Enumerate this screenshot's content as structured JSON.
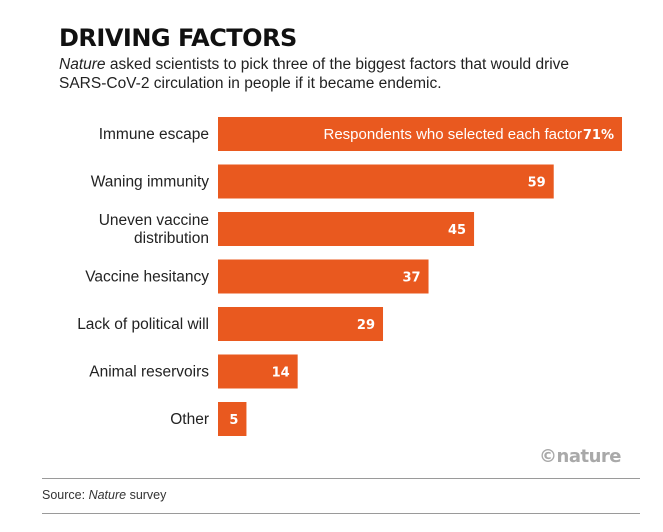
{
  "header": {
    "title": "DRIVING FACTORS",
    "subtitle_em": "Nature",
    "subtitle_rest": " asked scientists to pick three of the biggest factors that would drive SARS-CoV-2 circulation in people if it became endemic."
  },
  "colors": {
    "bar": "#e9591f",
    "text": "#222222",
    "rule": "#9a9a9a",
    "logo": "#a9a9a9"
  },
  "chart_data": {
    "type": "bar",
    "orientation": "horizontal",
    "title": "DRIVING FACTORS",
    "legend": "Respondents who selected each factor",
    "unit_suffix": "%",
    "categories": [
      [
        "Immune escape"
      ],
      [
        "Waning immunity"
      ],
      [
        "Uneven vaccine",
        "distribution"
      ],
      [
        "Vaccine hesitancy"
      ],
      [
        "Lack of political will"
      ],
      [
        "Animal reservoirs"
      ],
      [
        "Other"
      ]
    ],
    "values": [
      71,
      59,
      45,
      37,
      29,
      14,
      5
    ],
    "xlim": [
      0,
      71
    ]
  },
  "footer": {
    "logo": "©nature",
    "source_prefix": "Source: ",
    "source_em": "Nature",
    "source_suffix": " survey"
  }
}
